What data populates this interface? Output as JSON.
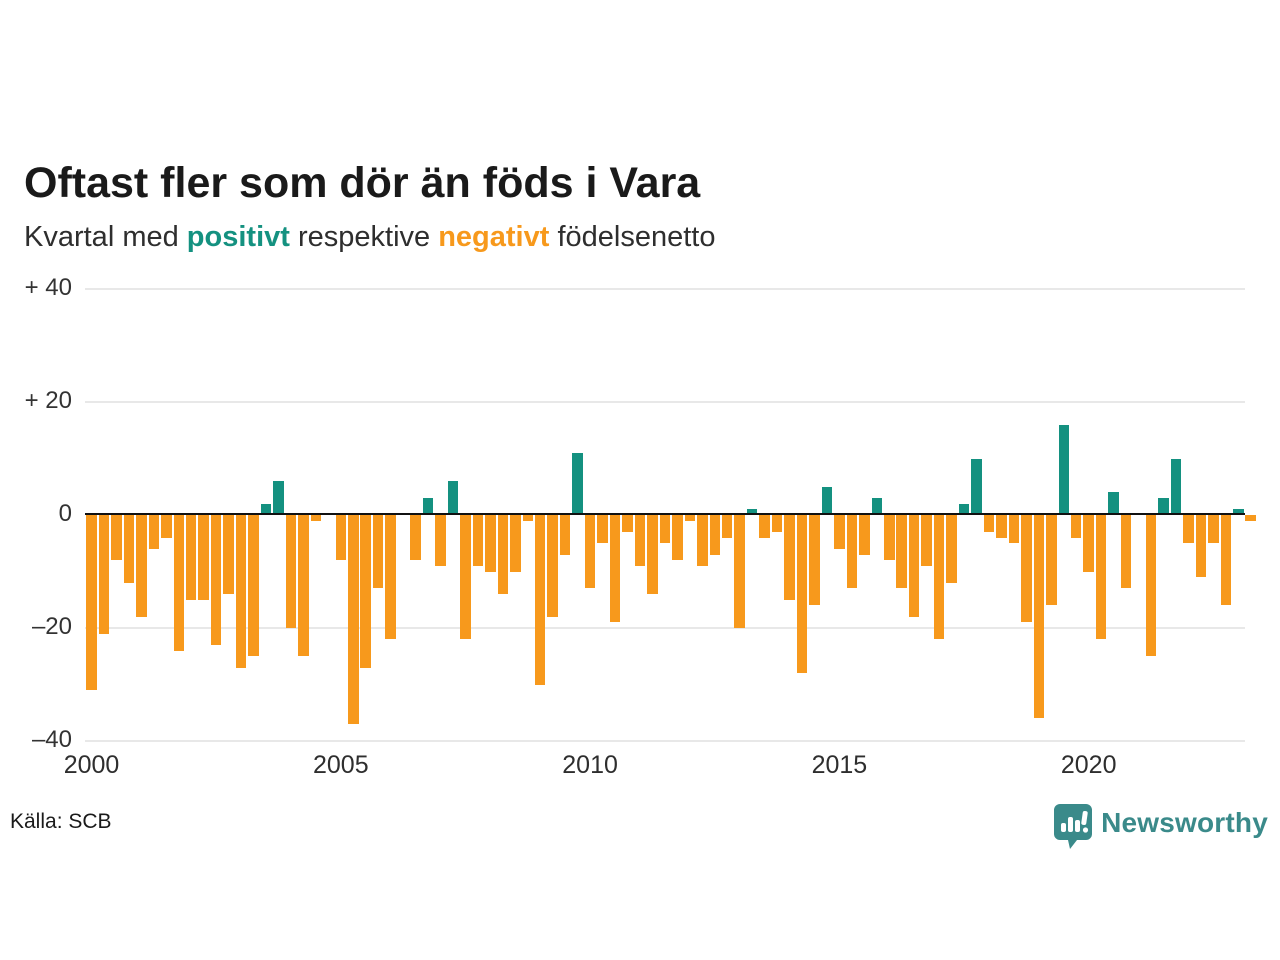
{
  "page": {
    "title": "Oftast fler som dör än föds i Vara",
    "source": "Källa: SCB",
    "brand_name": "Newsworthy"
  },
  "subtitle_parts": [
    {
      "text": "Kvartal med ",
      "style": "plain"
    },
    {
      "text": "positivt",
      "style": "positive"
    },
    {
      "text": " respektive ",
      "style": "plain"
    },
    {
      "text": "negativt",
      "style": "negative"
    },
    {
      "text": " födelsenetto",
      "style": "plain"
    }
  ],
  "colors": {
    "positive": "#149180",
    "negative": "#f7991c",
    "brand": "#3a8a8a",
    "grid": "#e8e8e8",
    "zero_line": "#111111",
    "title_text": "#1a1a1a",
    "tick_text": "#333333"
  },
  "chart_data": {
    "type": "bar",
    "title": "Oftast fler som dör än föds i Vara",
    "subtitle": "Kvartal med positivt respektive negativt födelsenetto",
    "x_start": "2000 Q1",
    "x_end": "2023 Q2",
    "x_frequency": "quarterly",
    "ylim": [
      -40,
      40
    ],
    "grid": true,
    "legend": "none",
    "y_ticks": [
      {
        "label": "+ 40",
        "value": 40
      },
      {
        "label": "+ 20",
        "value": 20
      },
      {
        "label": "0",
        "value": 0
      },
      {
        "label": "–20",
        "value": -20
      },
      {
        "label": "–40",
        "value": -40
      }
    ],
    "x_ticks": [
      {
        "label": "2000",
        "index": 0
      },
      {
        "label": "2005",
        "index": 20
      },
      {
        "label": "2010",
        "index": 40
      },
      {
        "label": "2015",
        "index": 60
      },
      {
        "label": "2020",
        "index": 80
      }
    ],
    "values": [
      -31,
      -21,
      -8,
      -12,
      -18,
      -6,
      -4,
      -24,
      -15,
      -15,
      -23,
      -14,
      -27,
      -25,
      2,
      6,
      -20,
      -25,
      -1,
      0,
      -8,
      -37,
      -27,
      -13,
      -22,
      0,
      -8,
      3,
      -9,
      6,
      -22,
      -9,
      -10,
      -14,
      -10,
      -1,
      -30,
      -18,
      -7,
      11,
      -13,
      -5,
      -19,
      -3,
      -9,
      -14,
      -5,
      -8,
      -1,
      -9,
      -7,
      -4,
      -20,
      1,
      -4,
      -3,
      -15,
      -28,
      -16,
      5,
      -6,
      -13,
      -7,
      3,
      -8,
      -13,
      -18,
      -9,
      -22,
      -12,
      2,
      10,
      -3,
      -4,
      -5,
      -19,
      -36,
      -16,
      16,
      -4,
      -10,
      -22,
      4,
      -13,
      0,
      -25,
      3,
      10,
      -5,
      -11,
      -5,
      -16,
      1,
      -1
    ]
  }
}
